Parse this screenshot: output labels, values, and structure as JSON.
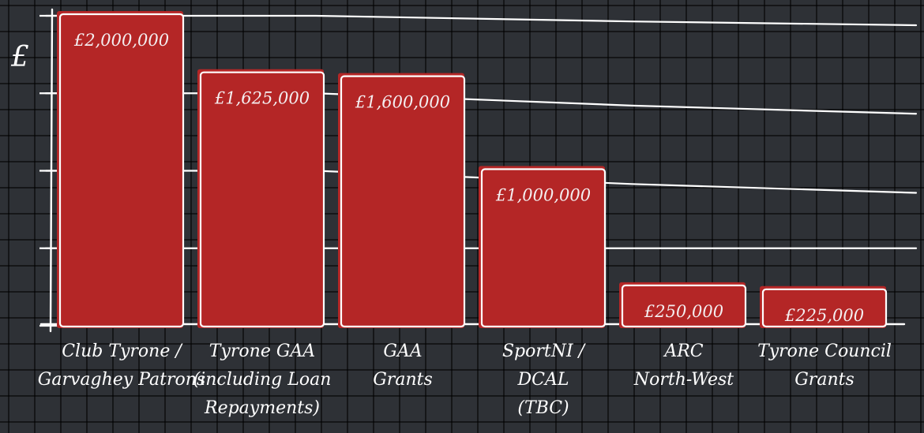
{
  "chart_data": {
    "type": "bar",
    "unit_label": "£",
    "categories": [
      [
        "Club Tyrone /",
        "Garvaghey Patrons"
      ],
      [
        "Tyrone GAA",
        "(including Loan",
        "Repayments)"
      ],
      [
        "GAA",
        "Grants"
      ],
      [
        "SportNI /",
        "DCAL",
        "(TBC)"
      ],
      [
        "ARC",
        "North-West"
      ],
      [
        "Tyrone Council",
        "Grants"
      ]
    ],
    "values": [
      2000000,
      1625000,
      1600000,
      1000000,
      250000,
      225000
    ],
    "value_labels": [
      "£2,000,000",
      "£1,625,000",
      "£1,600,000",
      "£1,000,000",
      "£250,000",
      "£225,000"
    ],
    "ylim": [
      0,
      2000000
    ],
    "grid": true,
    "colors": {
      "bar": "#b42626",
      "outline": "#ffffff",
      "background": "#2e3136",
      "grid": "#000000"
    }
  }
}
